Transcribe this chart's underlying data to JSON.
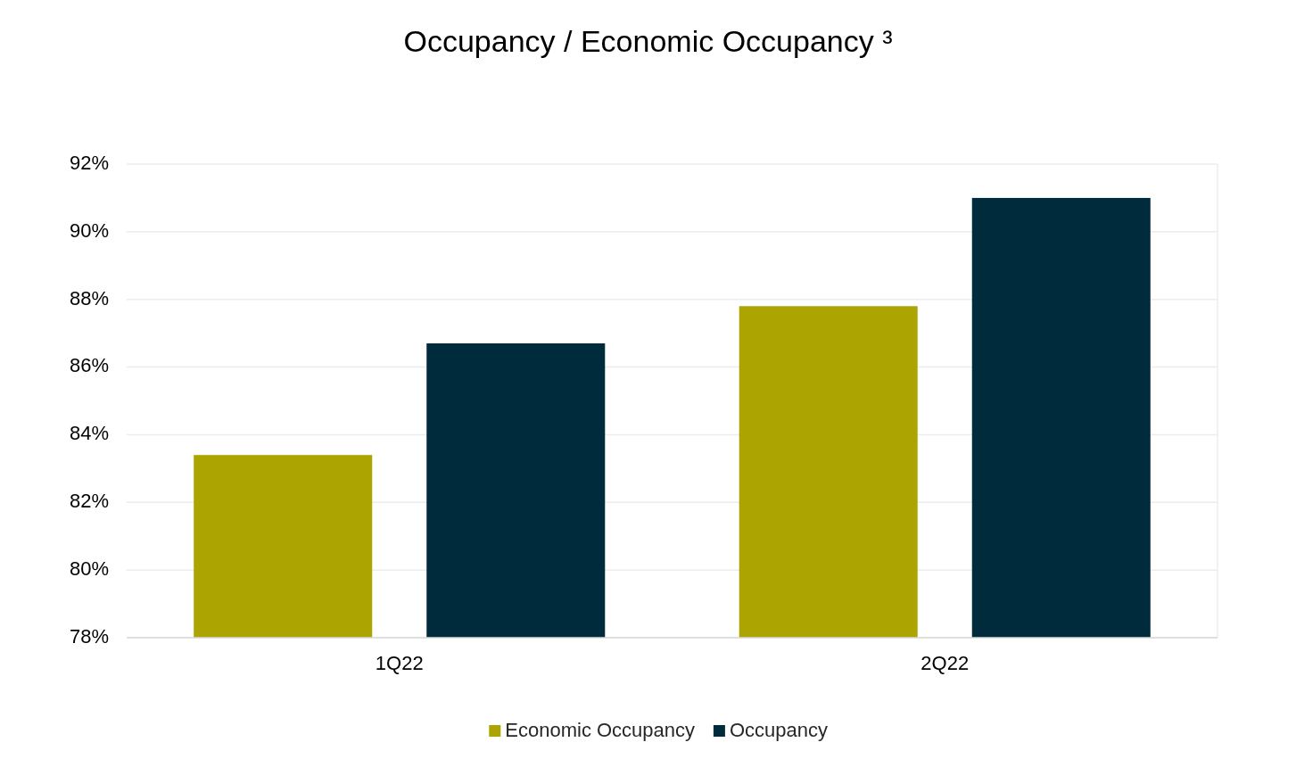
{
  "chart_data": {
    "type": "bar",
    "title": "Occupancy / Economic Occupancy ³",
    "categories": [
      "1Q22",
      "2Q22"
    ],
    "series": [
      {
        "name": "Economic Occupancy",
        "color": "#aca400",
        "values": [
          83.4,
          87.8
        ]
      },
      {
        "name": "Occupancy",
        "color": "#002b3c",
        "values": [
          86.7,
          91.0
        ]
      }
    ],
    "ylim": [
      78,
      92
    ],
    "yticks": [
      {
        "value": 78,
        "label": "78%"
      },
      {
        "value": 80,
        "label": "80%"
      },
      {
        "value": 82,
        "label": "82%"
      },
      {
        "value": 84,
        "label": "84%"
      },
      {
        "value": 86,
        "label": "86%"
      },
      {
        "value": 88,
        "label": "88%"
      },
      {
        "value": 90,
        "label": "90%"
      },
      {
        "value": 92,
        "label": "92%"
      }
    ],
    "grid": "y",
    "legend": "bottom"
  }
}
